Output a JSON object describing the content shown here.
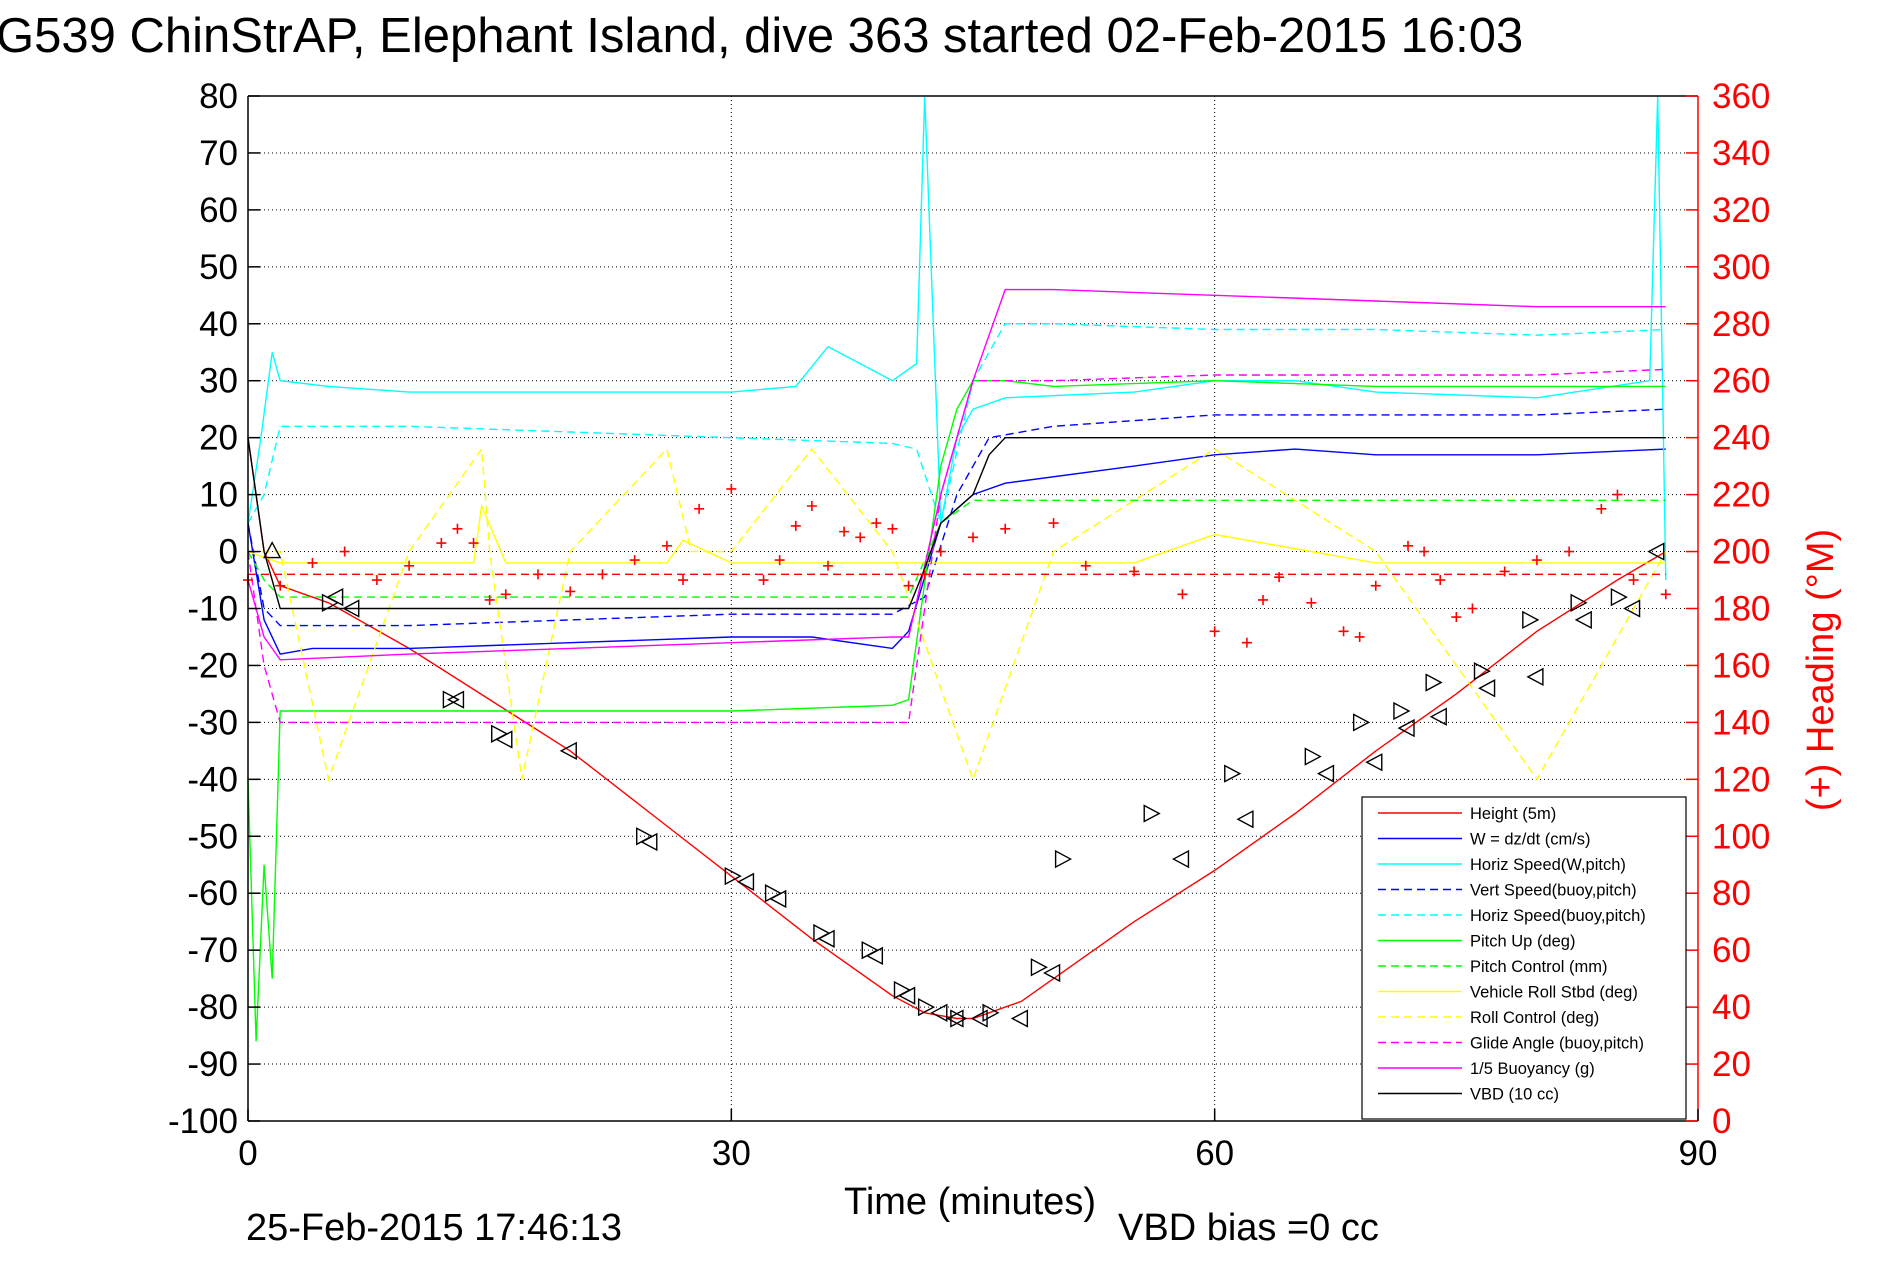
{
  "header": {
    "title": "G539 ChinStrAP, Elephant Island, dive 363 started 02-Feb-2015 16:03"
  },
  "footer": {
    "timestamp": "25-Feb-2015 17:46:13",
    "vbd_bias": "VBD bias =0 cc"
  },
  "chart_data": {
    "type": "line",
    "title": "G539 ChinStrAP, Elephant Island, dive 363 started 02-Feb-2015 16:03",
    "xlabel": "Time (minutes)",
    "ylabel": "",
    "y2label": "(+) Heading (°M)",
    "xlim": [
      0,
      90
    ],
    "ylim": [
      -100,
      80
    ],
    "y2lim": [
      0,
      360
    ],
    "grid": true,
    "legend_position": "bottom-right",
    "x_ticks": [
      "0",
      "30",
      "60",
      "90"
    ],
    "y_ticks": [
      "80",
      "70",
      "60",
      "50",
      "40",
      "30",
      "20",
      "10",
      "0",
      "-10",
      "-20",
      "-30",
      "-40",
      "-50",
      "-60",
      "-70",
      "-80",
      "-90",
      "-100"
    ],
    "y2_ticks": [
      "360",
      "340",
      "320",
      "300",
      "280",
      "260",
      "240",
      "220",
      "200",
      "180",
      "160",
      "140",
      "120",
      "100",
      "80",
      "60",
      "40",
      "20",
      "0"
    ],
    "series": [
      {
        "name": "Height (5m)",
        "color": "#ff0000",
        "style": "solid",
        "x": [
          0,
          1,
          2,
          5,
          10,
          15,
          20,
          25,
          30,
          35,
          40,
          42,
          44,
          45,
          46,
          48,
          50,
          55,
          60,
          65,
          70,
          75,
          80,
          85,
          88
        ],
        "values": [
          20,
          0,
          -6,
          -9,
          -17,
          -26,
          -35,
          -46,
          -57,
          -68,
          -78,
          -81,
          -82,
          -82,
          -81,
          -79,
          -75,
          -65,
          -56,
          -46,
          -35,
          -25,
          -14,
          -5,
          0
        ]
      },
      {
        "name": "W = dz/dt (cm/s)",
        "color": "#0000ff",
        "style": "solid",
        "x": [
          0,
          1,
          2,
          4,
          10,
          20,
          30,
          35,
          40,
          41,
          43,
          45,
          47,
          55,
          60,
          65,
          70,
          80,
          88
        ],
        "values": [
          5,
          -12,
          -18,
          -17,
          -17,
          -16,
          -15,
          -15,
          -17,
          -14,
          5,
          10,
          12,
          15,
          17,
          18,
          17,
          17,
          18
        ]
      },
      {
        "name": "Horiz Speed(W,pitch)",
        "color": "#00ffff",
        "style": "solid",
        "x": [
          0,
          0.8,
          1.5,
          2,
          5,
          10,
          20,
          30,
          34,
          36,
          40,
          41.5,
          42,
          43,
          44,
          45,
          47,
          55,
          60,
          65,
          70,
          80,
          87,
          87.5,
          88
        ],
        "values": [
          5,
          20,
          35,
          30,
          29,
          28,
          28,
          28,
          29,
          36,
          30,
          33,
          80,
          5,
          20,
          25,
          27,
          28,
          30,
          30,
          28,
          27,
          30,
          80,
          -5
        ]
      },
      {
        "name": "Vert Speed(buoy,pitch)",
        "color": "#0000ff",
        "style": "dashed",
        "x": [
          0,
          1,
          2,
          10,
          20,
          30,
          40,
          42,
          44,
          46,
          50,
          60,
          70,
          80,
          88
        ],
        "values": [
          5,
          -10,
          -13,
          -13,
          -12,
          -11,
          -11,
          -8,
          10,
          20,
          22,
          24,
          24,
          24,
          25
        ]
      },
      {
        "name": "Horiz Speed(buoy,pitch)",
        "color": "#00ffff",
        "style": "dashed",
        "x": [
          0,
          1,
          2,
          10,
          20,
          30,
          40,
          41.5,
          43,
          45,
          47,
          50,
          60,
          70,
          80,
          88
        ],
        "values": [
          5,
          10,
          22,
          22,
          21,
          20,
          19,
          18,
          5,
          30,
          40,
          40,
          39,
          39,
          38,
          39
        ]
      },
      {
        "name": "Pitch Up (deg)",
        "color": "#00ff00",
        "style": "solid",
        "x": [
          0,
          0.5,
          1,
          1.5,
          2,
          5,
          10,
          20,
          30,
          40,
          41,
          43,
          44,
          45,
          47,
          50,
          60,
          70,
          80,
          88
        ],
        "values": [
          -40,
          -86,
          -55,
          -75,
          -28,
          -28,
          -28,
          -28,
          -28,
          -27,
          -26,
          15,
          25,
          30,
          30,
          29,
          30,
          29,
          29,
          29
        ]
      },
      {
        "name": "Pitch Control (mm)",
        "color": "#00ff00",
        "style": "dashed",
        "x": [
          0,
          1,
          2,
          10,
          20,
          30,
          40,
          41,
          43,
          45,
          50,
          60,
          70,
          80,
          88
        ],
        "values": [
          0,
          -5,
          -8,
          -8,
          -8,
          -8,
          -8,
          -8,
          5,
          9,
          9,
          9,
          9,
          9,
          9
        ]
      },
      {
        "name": "Vehicle Roll Stbd (deg)",
        "color": "#ffff00",
        "style": "solid",
        "x": [
          0,
          2,
          10,
          14,
          14.5,
          16,
          20,
          26,
          27,
          30,
          35,
          40,
          43,
          45,
          50,
          55,
          60,
          70,
          80,
          88
        ],
        "values": [
          0,
          -2,
          -2,
          -2,
          8,
          -2,
          -2,
          -2,
          2,
          -2,
          -2,
          -2,
          -2,
          -2,
          -2,
          -2,
          3,
          -2,
          -2,
          -2
        ]
      },
      {
        "name": "Roll Control (deg)",
        "color": "#ffff00",
        "style": "dashed",
        "x": [
          0,
          2,
          5,
          10,
          14.5,
          15,
          17,
          20,
          26,
          27.5,
          30,
          35,
          40,
          45,
          50,
          60,
          70,
          80,
          88
        ],
        "values": [
          0,
          0,
          -40,
          0,
          18,
          0,
          -40,
          0,
          18,
          0,
          0,
          18,
          0,
          -40,
          0,
          18,
          0,
          -40,
          0
        ]
      },
      {
        "name": "Glide Angle (buoy,pitch)",
        "color": "#ff00ff",
        "style": "dashed",
        "x": [
          0,
          1,
          2,
          10,
          20,
          30,
          40,
          41,
          43,
          45,
          47,
          50,
          60,
          70,
          80,
          88
        ],
        "values": [
          0,
          -20,
          -30,
          -30,
          -30,
          -30,
          -30,
          -30,
          10,
          30,
          30,
          30,
          31,
          31,
          31,
          32
        ]
      },
      {
        "name": "1/5 Buoyancy (g)",
        "color": "#ff00ff",
        "style": "solid",
        "x": [
          0,
          1,
          2,
          10,
          20,
          30,
          40,
          41,
          43,
          45,
          47,
          50,
          60,
          70,
          80,
          88
        ],
        "values": [
          -5,
          -15,
          -19,
          -18,
          -17,
          -16,
          -15,
          -15,
          10,
          30,
          46,
          46,
          45,
          44,
          43,
          43
        ]
      },
      {
        "name": "VBD (10 cc)",
        "color": "#000000",
        "style": "solid",
        "x": [
          0,
          0.5,
          1,
          2,
          10,
          20,
          30,
          40,
          41,
          42,
          43,
          45,
          46,
          47,
          50,
          60,
          70,
          80,
          88
        ],
        "values": [
          20,
          10,
          0,
          -10,
          -10,
          -10,
          -10,
          -10,
          -10,
          -3,
          5,
          10,
          17,
          20,
          20,
          20,
          20,
          20,
          20
        ]
      },
      {
        "name": "",
        "color": "#ff0000",
        "style": "dashed",
        "axis": "left",
        "x": [
          0,
          41,
          88
        ],
        "values": [
          -4,
          -4,
          -4
        ]
      },
      {
        "name": "(+) Heading (°M)",
        "color": "#ff0000",
        "style": "plus-marker",
        "axis": "right",
        "x": [
          0,
          2,
          4,
          6,
          8,
          10,
          12,
          13,
          14,
          15,
          16,
          18,
          20,
          22,
          24,
          26,
          27,
          28,
          30,
          32,
          33,
          34,
          35,
          36,
          37,
          38,
          39,
          40,
          41,
          42,
          43,
          45,
          47,
          50,
          52,
          55,
          58,
          60,
          62,
          63,
          64,
          66,
          68,
          69,
          70,
          72,
          73,
          74,
          75,
          76,
          78,
          80,
          82,
          84,
          85,
          86,
          88
        ],
        "values": [
          190,
          188,
          196,
          200,
          190,
          195,
          203,
          208,
          203,
          183,
          185,
          192,
          186,
          192,
          197,
          202,
          190,
          215,
          222,
          190,
          197,
          209,
          216,
          195,
          207,
          205,
          210,
          208,
          188,
          192,
          200,
          205,
          208,
          210,
          195,
          193,
          185,
          172,
          168,
          183,
          191,
          182,
          172,
          170,
          188,
          202,
          200,
          190,
          177,
          180,
          193,
          197,
          200,
          215,
          220,
          190,
          185
        ]
      }
    ],
    "markers": [
      {
        "name": "triangle-up",
        "x": [
          1.5
        ],
        "values": [
          0
        ]
      },
      {
        "name": "triangle-left",
        "x": [
          5.5,
          6.5,
          13,
          16,
          20,
          25,
          31,
          33,
          36,
          39,
          41,
          43,
          44,
          45.5,
          48,
          50,
          58,
          62,
          67,
          70,
          72,
          74,
          77,
          80,
          83,
          86,
          87.5
        ],
        "values": [
          -8,
          -10,
          -26,
          -33,
          -35,
          -51,
          -58,
          -61,
          -68,
          -71,
          -78,
          -81,
          -82,
          -82,
          -82,
          -74,
          -54,
          -47,
          -39,
          -37,
          -31,
          -29,
          -24,
          -22,
          -12,
          -10,
          0
        ]
      },
      {
        "name": "triangle-right",
        "x": [
          5,
          12.5,
          15.5,
          24.5,
          30,
          32.5,
          35.5,
          38.5,
          40.5,
          42,
          44,
          46,
          49,
          50.5,
          56,
          61,
          66,
          69,
          71.5,
          73.5,
          76.5,
          79.5,
          82.5,
          85
        ],
        "values": [
          -9,
          -26,
          -32,
          -50,
          -57,
          -60,
          -67,
          -70,
          -77,
          -80,
          -82,
          -81,
          -73,
          -54,
          -46,
          -39,
          -36,
          -30,
          -28,
          -23,
          -21,
          -12,
          -9,
          -8
        ]
      }
    ]
  }
}
